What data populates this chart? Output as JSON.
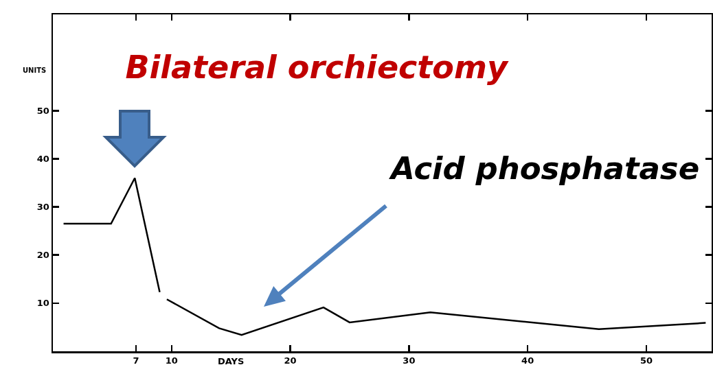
{
  "chart_data": {
    "type": "line",
    "title": "Bilateral orchiectomy",
    "xlabel": "DAYS",
    "ylabel": "UNITS",
    "x": [
      0.9,
      4.9,
      6.9,
      9.0,
      9.3,
      9.6,
      14.0,
      15.9,
      22.8,
      25.0,
      31.8,
      46.0,
      55.0
    ],
    "series": [
      {
        "color": "#000000",
        "values": [
          26.5,
          26.5,
          36,
          12.3,
          null,
          10.8,
          4.8,
          3.4,
          9.1,
          6.0,
          8.1,
          4.6,
          5.9
        ]
      }
    ],
    "annotations": [
      "Acid phosphatase"
    ],
    "xlim": [
      0,
      55.5
    ],
    "xticks": [
      7,
      10,
      20,
      30,
      40,
      50
    ],
    "ylim": [
      0,
      70
    ],
    "yticks": [
      10,
      20,
      30,
      40,
      50
    ],
    "grid": false,
    "legend": false,
    "marker": "none",
    "line_style": "solid"
  }
}
